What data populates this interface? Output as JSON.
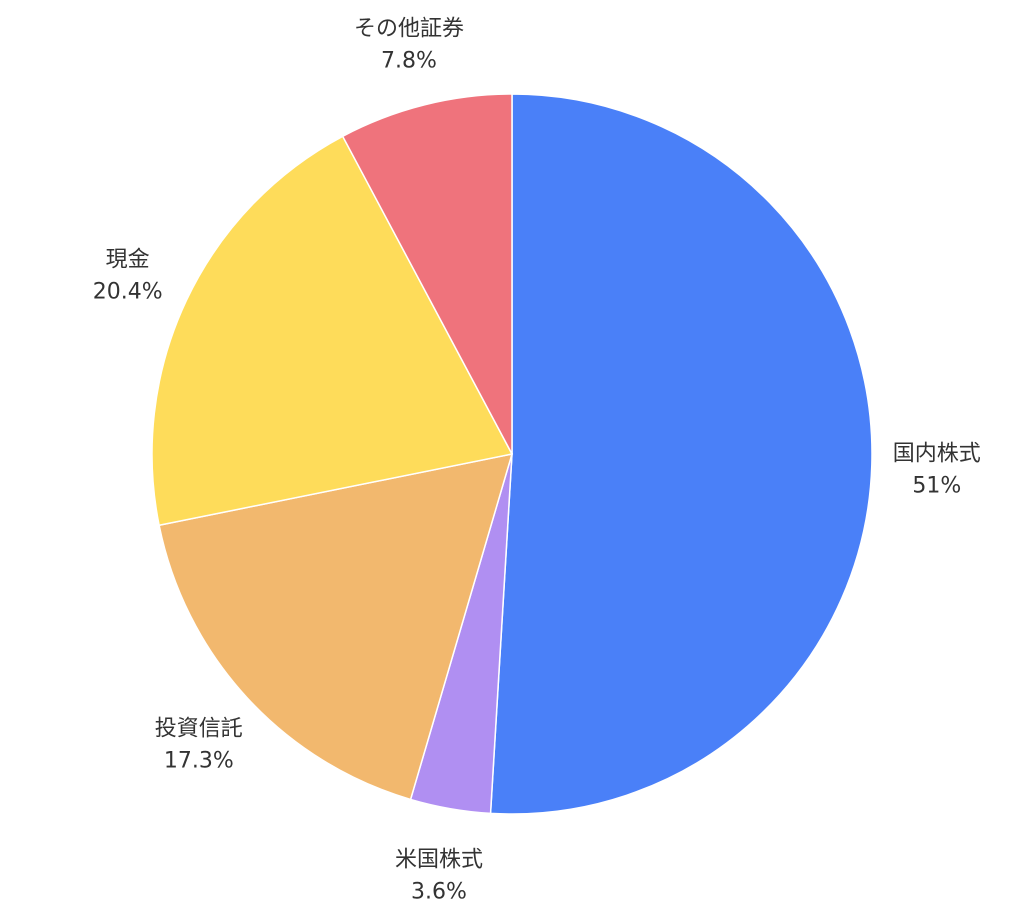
{
  "chart_data": {
    "type": "pie",
    "title": "",
    "start": "top",
    "direction": "clockwise",
    "slices": [
      {
        "label": "国内株式",
        "value": 51,
        "display": "51%",
        "color": "#4a80f8"
      },
      {
        "label": "米国株式",
        "value": 3.6,
        "display": "3.6%",
        "color": "#b08ff2"
      },
      {
        "label": "投資信託",
        "value": 17.3,
        "display": "17.3%",
        "color": "#f2b86e"
      },
      {
        "label": "現金",
        "value": 20.4,
        "display": "20.4%",
        "color": "#fedc5a"
      },
      {
        "label": "その他証券",
        "value": 7.8,
        "display": "7.8%",
        "color": "#ef737c"
      }
    ]
  }
}
